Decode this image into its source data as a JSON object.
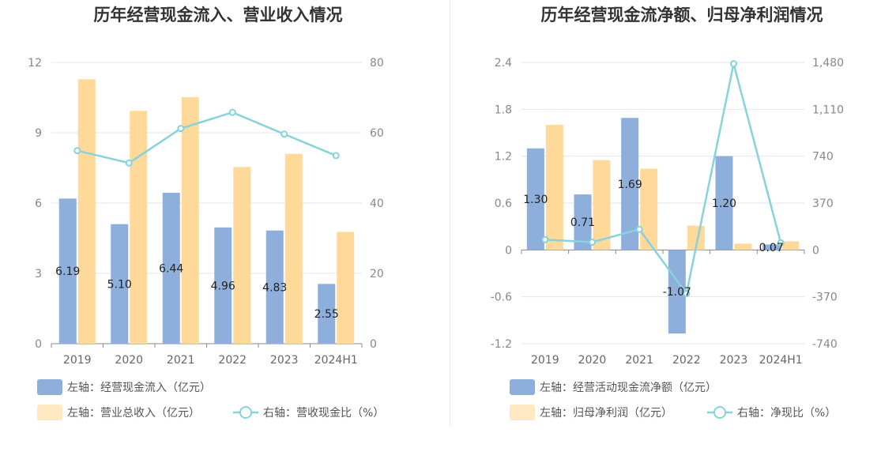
{
  "chart_data": [
    {
      "type": "bar",
      "title": "历年经营现金流入、营业收入情况",
      "categories": [
        "2019",
        "2020",
        "2021",
        "2022",
        "2023",
        "2024H1"
      ],
      "left_axis": {
        "ylim": [
          0,
          12
        ],
        "ticks": [
          "0",
          "3",
          "6",
          "9",
          "12"
        ],
        "tick_values": [
          0,
          3,
          6,
          9,
          12
        ]
      },
      "right_axis": {
        "ylim": [
          0,
          80
        ],
        "ticks": [
          "0",
          "20",
          "40",
          "60",
          "80"
        ],
        "tick_values": [
          0,
          20,
          40,
          60,
          80
        ]
      },
      "grid": true,
      "legend_position": "bottom",
      "series": [
        {
          "name": "左轴：经营现金流入（亿元）",
          "type": "bar",
          "axis": "left",
          "color": "#8eaedc",
          "values": [
            6.19,
            5.1,
            6.44,
            4.96,
            4.83,
            2.55
          ],
          "labels": [
            "6.19",
            "5.10",
            "6.44",
            "4.96",
            "4.83",
            "2.55"
          ]
        },
        {
          "name": "左轴：营业总收入（亿元）",
          "type": "bar",
          "axis": "left",
          "color": "#ffd99a",
          "values": [
            11.28,
            9.93,
            10.52,
            7.54,
            8.1,
            4.77
          ]
        },
        {
          "name": "右轴：营收现金比（%）",
          "type": "line",
          "axis": "right",
          "color": "#86d3dc",
          "values": [
            54.9,
            51.4,
            61.2,
            65.8,
            59.6,
            53.5
          ]
        }
      ]
    },
    {
      "type": "bar",
      "title": "历年经营现金流净额、归母净利润情况",
      "categories": [
        "2019",
        "2020",
        "2021",
        "2022",
        "2023",
        "2024H1"
      ],
      "left_axis": {
        "ylim": [
          -1.2,
          2.4
        ],
        "ticks": [
          "-1.2",
          "-0.6",
          "0",
          "0.6",
          "1.2",
          "1.8",
          "2.4"
        ],
        "tick_values": [
          -1.2,
          -0.6,
          0,
          0.6,
          1.2,
          1.8,
          2.4
        ]
      },
      "right_axis": {
        "ylim": [
          -740,
          1480
        ],
        "ticks": [
          "-740",
          "-370",
          "0",
          "370",
          "740",
          "1,110",
          "1,480"
        ],
        "tick_values": [
          -740,
          -370,
          0,
          370,
          740,
          1110,
          1480
        ]
      },
      "grid": true,
      "legend_position": "bottom",
      "series": [
        {
          "name": "左轴：经营活动现金流净额（亿元）",
          "type": "bar",
          "axis": "left",
          "color": "#8eaedc",
          "values": [
            1.3,
            0.71,
            1.69,
            -1.07,
            1.2,
            0.07
          ],
          "labels": [
            "1.30",
            "0.71",
            "1.69",
            "-1.07",
            "1.20",
            "0.07"
          ]
        },
        {
          "name": "左轴：归母净利润（亿元）",
          "type": "bar",
          "axis": "left",
          "color": "#ffd99a",
          "values": [
            1.6,
            1.15,
            1.04,
            0.31,
            0.08,
            0.11
          ]
        },
        {
          "name": "右轴：净现比（%）",
          "type": "line",
          "axis": "right",
          "color": "#86d3dc",
          "values": [
            81,
            61,
            163,
            -345,
            1470,
            56
          ]
        }
      ]
    }
  ]
}
